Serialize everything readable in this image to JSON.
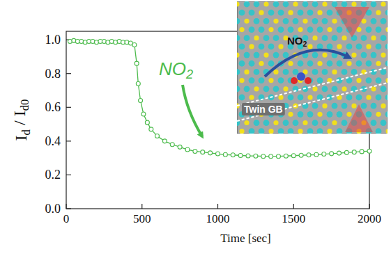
{
  "chart_data": {
    "type": "line",
    "xlabel": "Time [sec]",
    "ylabel": "Id / Id0",
    "xlim": [
      0,
      2000
    ],
    "ylim": [
      0,
      1.05
    ],
    "xticks": [
      0,
      500,
      1000,
      1500,
      2000
    ],
    "yticks": [
      {
        "value": 0,
        "label": "0.0"
      },
      {
        "value": 0.2,
        "label": "0.2"
      },
      {
        "value": 0.4,
        "label": "0.4"
      },
      {
        "value": 0.6,
        "label": "0.6"
      },
      {
        "value": 0.8,
        "label": "0.8"
      },
      {
        "value": 1.0,
        "label": "1.0"
      }
    ],
    "grid": false,
    "annotations": [
      "NO2",
      "NO2",
      "Twin GB"
    ],
    "x": [
      25,
      50,
      75,
      100,
      125,
      150,
      175,
      200,
      225,
      250,
      275,
      300,
      325,
      350,
      375,
      400,
      425,
      450,
      465,
      475,
      490,
      510,
      535,
      560,
      600,
      650,
      700,
      750,
      800,
      850,
      900,
      950,
      1000,
      1050,
      1100,
      1150,
      1200,
      1250,
      1300,
      1350,
      1400,
      1450,
      1500,
      1550,
      1600,
      1650,
      1700,
      1750,
      1800,
      1850,
      1900,
      1950,
      2000
    ],
    "series": [
      {
        "color": "#4cbb4c",
        "marker": "circle",
        "line_style": "solid",
        "values": [
          0.99,
          0.995,
          0.99,
          0.99,
          0.985,
          0.99,
          0.99,
          0.985,
          0.99,
          0.99,
          0.985,
          0.99,
          0.985,
          0.99,
          0.985,
          0.985,
          0.98,
          0.97,
          0.86,
          0.74,
          0.64,
          0.56,
          0.51,
          0.47,
          0.43,
          0.4,
          0.38,
          0.365,
          0.35,
          0.34,
          0.335,
          0.33,
          0.325,
          0.32,
          0.318,
          0.315,
          0.313,
          0.312,
          0.31,
          0.31,
          0.31,
          0.312,
          0.314,
          0.316,
          0.318,
          0.32,
          0.323,
          0.326,
          0.329,
          0.332,
          0.335,
          0.338,
          0.341
        ]
      }
    ]
  }
}
